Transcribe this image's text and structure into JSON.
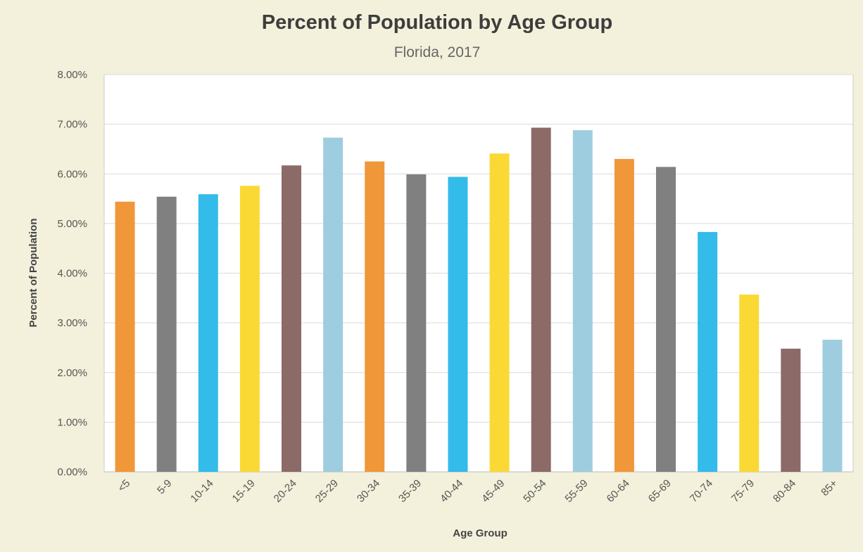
{
  "chart_data": {
    "type": "bar",
    "title": "Percent of Population by Age Group",
    "subtitle": "Florida, 2017",
    "xlabel": "Age Group",
    "ylabel": "Percent of Population",
    "categories": [
      "<5",
      "5-9",
      "10-14",
      "15-19",
      "20-24",
      "25-29",
      "30-34",
      "35-39",
      "40-44",
      "45-49",
      "50-54",
      "55-59",
      "60-64",
      "65-69",
      "70-74",
      "75-79",
      "80-84",
      "85+"
    ],
    "values": [
      5.44,
      5.54,
      5.59,
      5.76,
      6.17,
      6.73,
      6.25,
      5.99,
      5.94,
      6.41,
      6.93,
      6.88,
      6.3,
      6.14,
      4.83,
      3.57,
      2.48,
      2.66
    ],
    "ylim": [
      0,
      8
    ],
    "yticks": [
      0,
      1,
      2,
      3,
      4,
      5,
      6,
      7,
      8
    ],
    "ytick_labels": [
      "0.00%",
      "1.00%",
      "2.00%",
      "3.00%",
      "4.00%",
      "5.00%",
      "6.00%",
      "7.00%",
      "8.00%"
    ],
    "grid": true,
    "bar_colors": [
      "#f0973a",
      "#808080",
      "#33bbea",
      "#fbd935",
      "#8b6a68",
      "#9fcde0"
    ]
  }
}
